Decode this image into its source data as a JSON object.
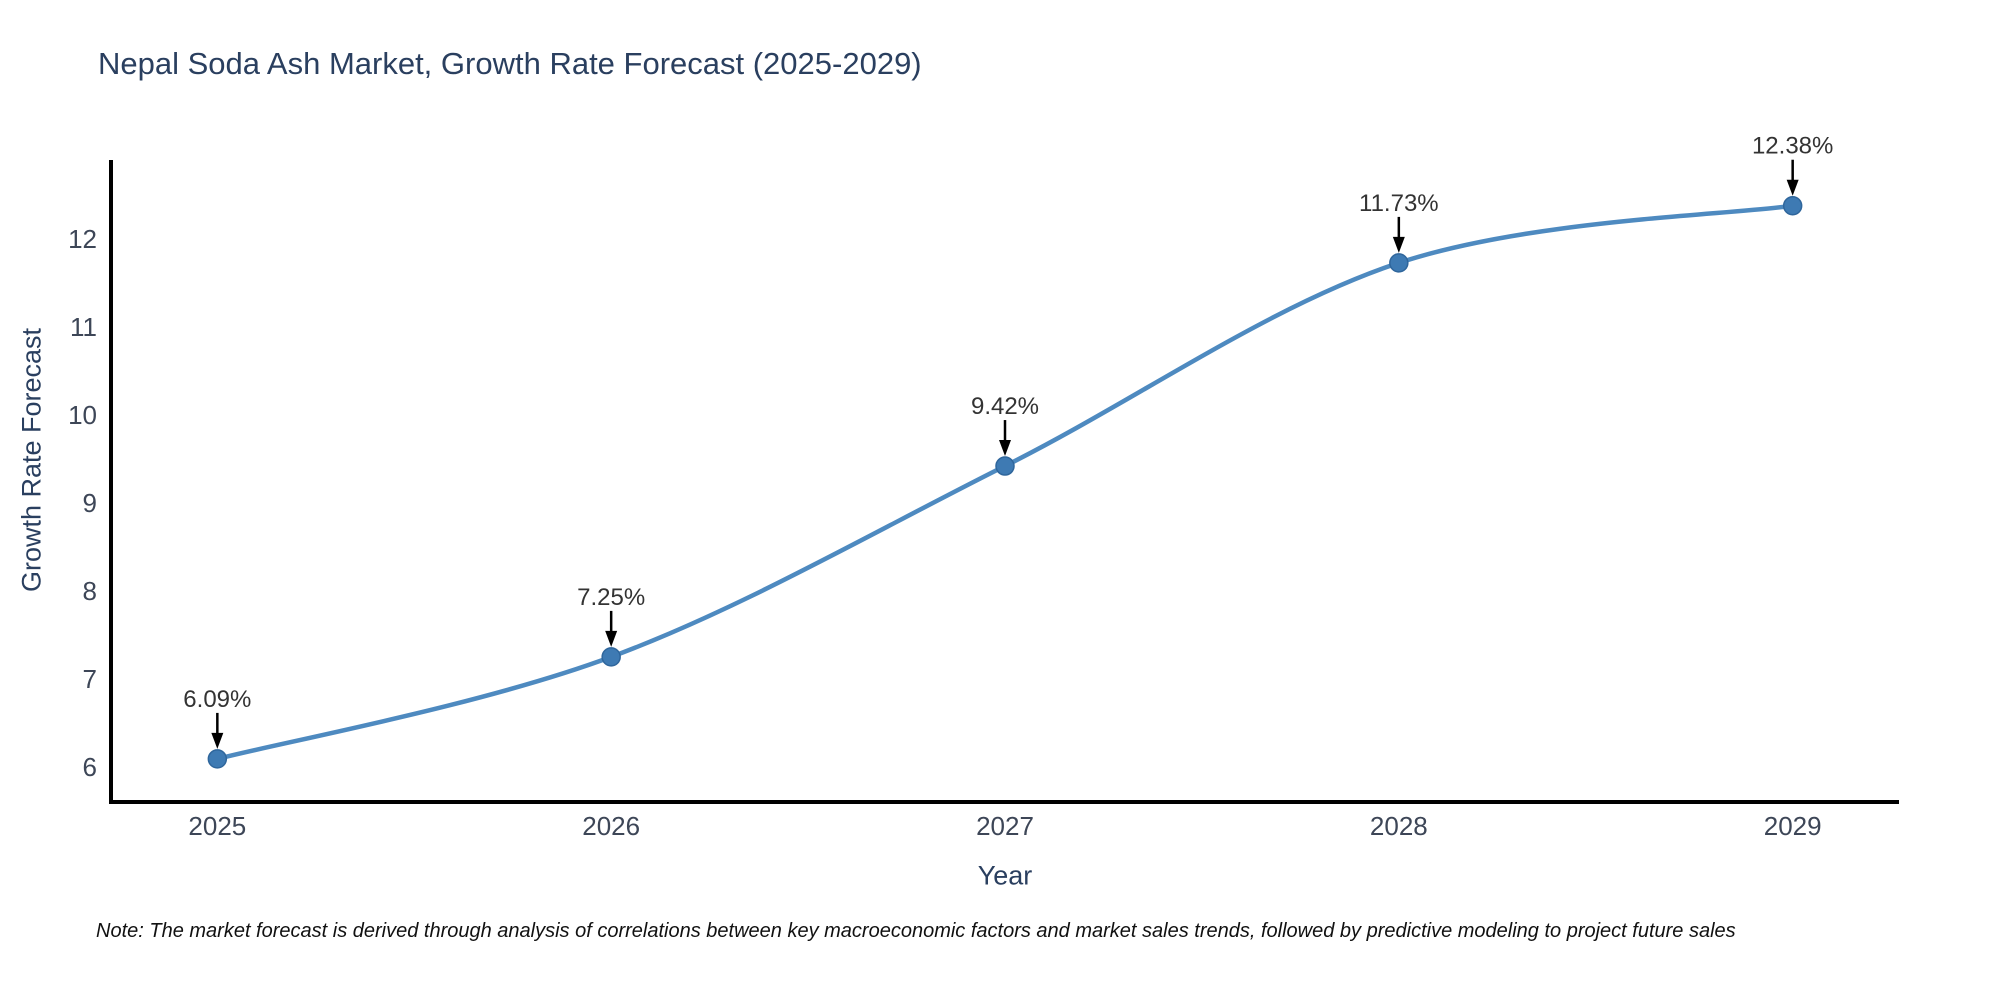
{
  "title": "Nepal Soda Ash Market, Growth Rate Forecast (2025-2029)",
  "note": "Note: The market forecast is derived through analysis of correlations between key macroeconomic factors and market sales trends, followed by predictive modeling to project future sales",
  "chart_data": {
    "type": "line",
    "title": "Nepal Soda Ash Market, Growth Rate Forecast (2025-2029)",
    "xlabel": "Year",
    "ylabel": "Growth Rate Forecast",
    "x": [
      2025,
      2026,
      2027,
      2028,
      2029
    ],
    "x_tick_labels": [
      "2025",
      "2026",
      "2027",
      "2028",
      "2029"
    ],
    "series": [
      {
        "name": "Growth Rate Forecast",
        "values": [
          6.09,
          7.25,
          9.42,
          11.73,
          12.38
        ],
        "point_labels": [
          "6.09%",
          "7.25%",
          "9.42%",
          "11.73%",
          "12.38%"
        ]
      }
    ],
    "y_ticks": [
      6,
      7,
      8,
      9,
      10,
      11,
      12
    ],
    "xlim": [
      2024.73,
      2029.27
    ],
    "ylim": [
      5.6,
      12.9
    ],
    "line_shape": "spline",
    "grid": false,
    "legend": "none",
    "colors": {
      "line": "#4e8ac0",
      "marker_fill": "#3e7ab3",
      "marker_edge": "#2f669c",
      "axis_line": "#000000",
      "tick_text": "#3d4657",
      "annotation_text": "#333333",
      "annotation_arrow": "#000000",
      "title_text": "#2a3f5f",
      "background": "#ffffff"
    }
  }
}
